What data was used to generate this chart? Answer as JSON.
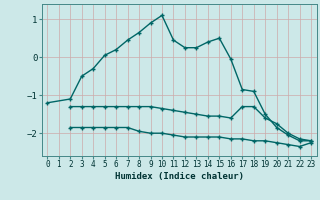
{
  "xlabel": "Humidex (Indice chaleur)",
  "background_color": "#cce8e8",
  "grid_color": "#b0d0d0",
  "line_color": "#006666",
  "xlim": [
    -0.5,
    23.5
  ],
  "ylim": [
    -2.6,
    1.4
  ],
  "yticks": [
    -2,
    -1,
    0,
    1
  ],
  "xticks": [
    0,
    1,
    2,
    3,
    4,
    5,
    6,
    7,
    8,
    9,
    10,
    11,
    12,
    13,
    14,
    15,
    16,
    17,
    18,
    19,
    20,
    21,
    22,
    23
  ],
  "line1_x": [
    0,
    2,
    3,
    4,
    5,
    6,
    7,
    8,
    9,
    10,
    11,
    12,
    13,
    14,
    15,
    16,
    17,
    18,
    19,
    20,
    21,
    22,
    23
  ],
  "line1_y": [
    -1.2,
    -1.1,
    -0.5,
    -0.3,
    0.05,
    0.2,
    0.45,
    0.65,
    0.9,
    1.1,
    0.45,
    0.25,
    0.25,
    0.4,
    0.5,
    -0.05,
    -0.85,
    -0.9,
    -1.5,
    -1.85,
    -2.05,
    -2.2,
    -2.2
  ],
  "line2_x": [
    2,
    3,
    4,
    5,
    6,
    7,
    8,
    9,
    10,
    11,
    12,
    13,
    14,
    15,
    16,
    17,
    18,
    19,
    20,
    21,
    22,
    23
  ],
  "line2_y": [
    -1.3,
    -1.3,
    -1.3,
    -1.3,
    -1.3,
    -1.3,
    -1.3,
    -1.3,
    -1.35,
    -1.4,
    -1.45,
    -1.5,
    -1.55,
    -1.55,
    -1.6,
    -1.3,
    -1.3,
    -1.6,
    -1.75,
    -2.0,
    -2.15,
    -2.2
  ],
  "line3_x": [
    2,
    3,
    4,
    5,
    6,
    7,
    8,
    9,
    10,
    11,
    12,
    13,
    14,
    15,
    16,
    17,
    18,
    19,
    20,
    21,
    22,
    23
  ],
  "line3_y": [
    -1.85,
    -1.85,
    -1.85,
    -1.85,
    -1.85,
    -1.85,
    -1.95,
    -2.0,
    -2.0,
    -2.05,
    -2.1,
    -2.1,
    -2.1,
    -2.1,
    -2.15,
    -2.15,
    -2.2,
    -2.2,
    -2.25,
    -2.3,
    -2.35,
    -2.25
  ]
}
